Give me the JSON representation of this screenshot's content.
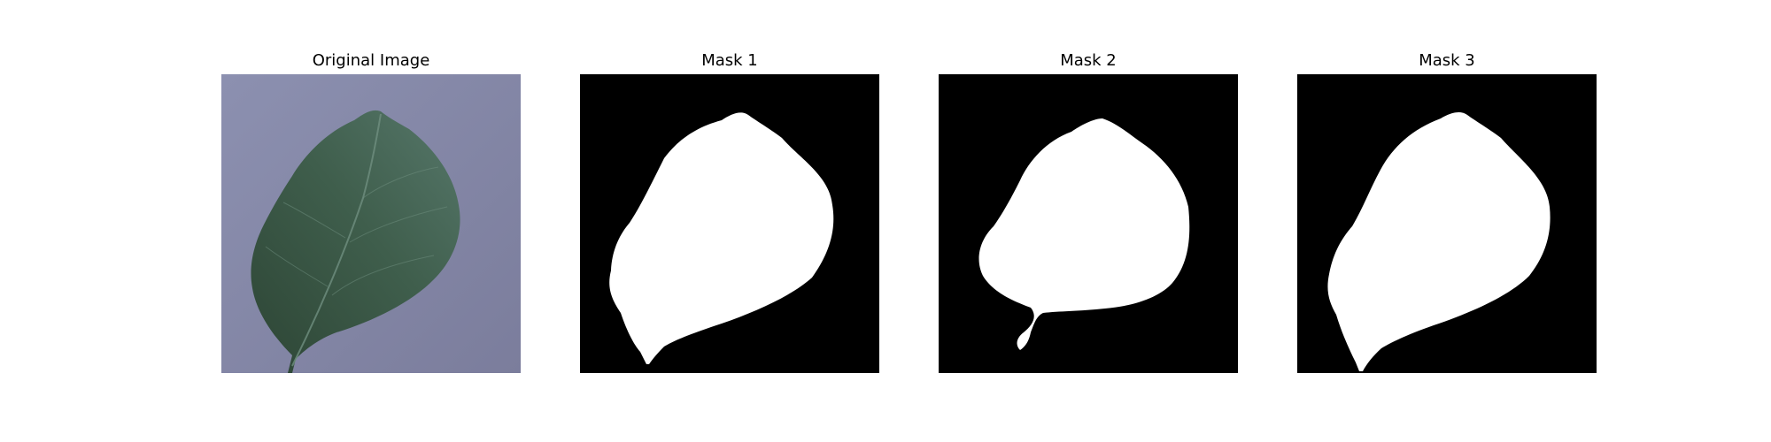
{
  "figure": {
    "panels": [
      {
        "title": "Original Image"
      },
      {
        "title": "Mask 1"
      },
      {
        "title": "Mask 2"
      },
      {
        "title": "Mask 3"
      }
    ]
  },
  "colors": {
    "background": "#ffffff",
    "mask_background": "#000000",
    "mask_foreground": "#ffffff",
    "photo_surface": "#8487a6",
    "leaf_dark": "#2f4a3a",
    "leaf_light": "#4c6d5d"
  }
}
